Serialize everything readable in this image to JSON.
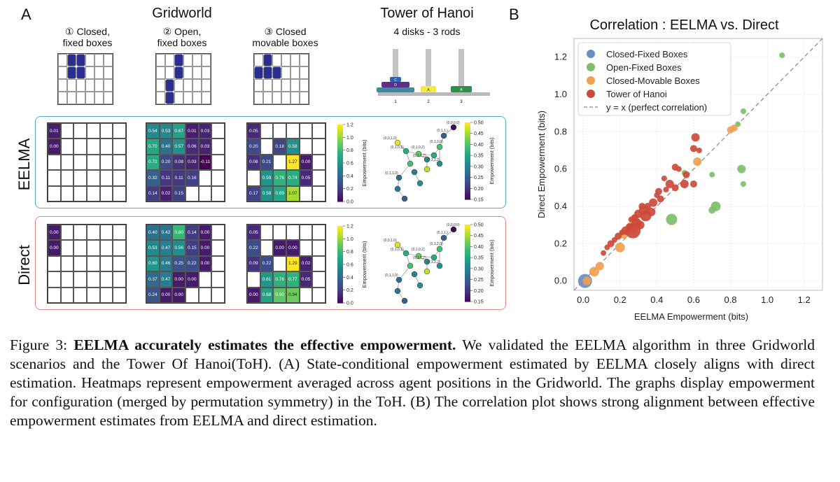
{
  "panel_a": {
    "letter": "A",
    "gridworld_title": "Gridworld",
    "scenarios": [
      {
        "num": "①",
        "line1": "Closed,",
        "line2": "fixed boxes"
      },
      {
        "num": "②",
        "line1": "Open,",
        "line2": "fixed boxes"
      },
      {
        "num": "③",
        "line1": "Closed",
        "line2": "movable boxes"
      }
    ],
    "hanoi_title": "Tower of Hanoi",
    "hanoi_sub": "4 disks - 3 rods",
    "rod_labels": [
      "1",
      "2",
      "3"
    ],
    "disk_labels": [
      "C",
      "D",
      "A",
      "B"
    ],
    "rows": [
      "EELMA",
      "Direct"
    ],
    "cbar_label": "Empowerment (bits)",
    "cbar_left_ticks": [
      "1.2",
      "1.0",
      "0.8",
      "0.6",
      "0.4",
      "0.2",
      "0.0"
    ],
    "cbar_right_ticks": [
      "0.50",
      "0.45",
      "0.40",
      "0.35",
      "0.30",
      "0.25",
      "0.20",
      "0.15"
    ],
    "eelma": {
      "g1": [
        [
          "0.01",
          "",
          "",
          "",
          "",
          ""
        ],
        [
          "0.00",
          "",
          "",
          "",
          "",
          ""
        ],
        [
          "",
          "",
          "",
          "",
          "",
          ""
        ],
        [
          "",
          "",
          "",
          "",
          "",
          ""
        ],
        [
          "",
          "",
          "",
          "",
          "",
          ""
        ]
      ],
      "g2": [
        [
          "0.54",
          "0.53",
          "0.67",
          "0.01",
          "0.03",
          ""
        ],
        [
          "0.70",
          "0.40",
          "0.57",
          "0.06",
          "0.03",
          ""
        ],
        [
          "0.72",
          "0.20",
          "0.08",
          "0.03",
          "-0.11",
          ""
        ],
        [
          "0.32",
          "0.11",
          "0.11",
          "0.16",
          "",
          ""
        ],
        [
          "0.14",
          "0.02",
          "0.15",
          "",
          "",
          ""
        ]
      ],
      "g3": [
        [
          "0.05",
          "",
          "",
          "",
          "",
          ""
        ],
        [
          "0.20",
          "",
          "0.18",
          "0.58",
          "",
          ""
        ],
        [
          "0.08",
          "0.21",
          "",
          "1.27",
          "0.00",
          ""
        ],
        [
          "",
          "0.59",
          "0.76",
          "0.74",
          "0.05",
          ""
        ],
        [
          "0.17",
          "0.58",
          "0.69",
          "1.07",
          "",
          ""
        ]
      ]
    },
    "direct": {
      "g1": [
        [
          "0.00",
          "",
          "",
          "",
          "",
          ""
        ],
        [
          "0.00",
          "",
          "",
          "",
          "",
          ""
        ],
        [
          "",
          "",
          "",
          "",
          "",
          ""
        ],
        [
          "",
          "",
          "",
          "",
          "",
          ""
        ],
        [
          "",
          "",
          "",
          "",
          "",
          ""
        ]
      ],
      "g2": [
        [
          "0.40",
          "0.42",
          "0.80",
          "0.14",
          "0.00",
          ""
        ],
        [
          "0.53",
          "0.47",
          "0.56",
          "0.15",
          "0.00",
          ""
        ],
        [
          "0.60",
          "0.46",
          "0.25",
          "0.22",
          "0.00",
          ""
        ],
        [
          "0.37",
          "0.47",
          "0.00",
          "0.00",
          "",
          ""
        ],
        [
          "0.24",
          "0.00",
          "0.00",
          "",
          "",
          ""
        ]
      ],
      "g3": [
        [
          "0.05",
          "",
          "",
          "",
          "",
          ""
        ],
        [
          "0.22",
          "",
          "0.00",
          "0.00",
          "",
          ""
        ],
        [
          "0.09",
          "0.22",
          "",
          "1.29",
          "0.02",
          ""
        ],
        [
          "",
          "0.61",
          "0.76",
          "0.77",
          "0.05",
          ""
        ],
        [
          "0.00",
          "0.68",
          "0.90",
          "0.94",
          "",
          ""
        ]
      ]
    },
    "hanoi_nodes_eelma": [
      "(0,0,0,0)",
      "(0,1,1,)",
      "(0,0,1,0)",
      "(0,1,0,1)",
      "(0,1,0,2)",
      "(0,1,2,0)",
      "(0,1,1,2)",
      "(0,1,2,2)",
      "(0,1,1,0)"
    ],
    "hanoi_nodes_direct": [
      "(0,0,0,0)",
      "(0,1,1,)",
      "(0,0,1,0)",
      "(0,1,0,1)",
      "(0,1,0,2)",
      "(0,1,2,0)",
      "(0,1,1,2)",
      "(0,1,2,2)",
      "(0,1,1,0)"
    ]
  },
  "panel_b": {
    "letter": "B",
    "chart_data": {
      "type": "scatter",
      "title": "Correlation : EELMA vs. Direct",
      "xlabel": "EELMA Empowerment (bits)",
      "ylabel": "Direct Empowerment (bits)",
      "xlim": [
        -0.05,
        1.3
      ],
      "ylim": [
        -0.05,
        1.3
      ],
      "xticks": [
        "0.0",
        "0.2",
        "0.4",
        "0.6",
        "0.8",
        "1.0",
        "1.2"
      ],
      "yticks": [
        "0.0",
        "0.2",
        "0.4",
        "0.6",
        "0.8",
        "1.0",
        "1.2"
      ],
      "grid": true,
      "legend_position": "top-left",
      "reference_line": "y = x (perfect correlation)",
      "series": [
        {
          "name": "Closed-Fixed Boxes",
          "color": "#6a8fc2",
          "points": [
            [
              0.01,
              0.0,
              10
            ]
          ]
        },
        {
          "name": "Open-Fixed Boxes",
          "color": "#7cbf6a",
          "points": [
            [
              1.08,
              1.21,
              4
            ],
            [
              0.87,
              0.91,
              4
            ],
            [
              0.84,
              0.84,
              4
            ],
            [
              0.86,
              0.6,
              6
            ],
            [
              0.87,
              0.52,
              4
            ],
            [
              0.72,
              0.4,
              7
            ],
            [
              0.7,
              0.38,
              5
            ],
            [
              0.7,
              0.57,
              4
            ],
            [
              0.48,
              0.33,
              8
            ],
            [
              0.55,
              0.58,
              4
            ]
          ]
        },
        {
          "name": "Closed-Movable Boxes",
          "color": "#f0a050",
          "points": [
            [
              0.02,
              0.0,
              6
            ],
            [
              0.06,
              0.05,
              7
            ],
            [
              0.09,
              0.08,
              6
            ],
            [
              0.2,
              0.18,
              7
            ],
            [
              0.22,
              0.25,
              6
            ],
            [
              0.27,
              0.29,
              9
            ],
            [
              0.62,
              0.64,
              6
            ],
            [
              0.8,
              0.81,
              5
            ],
            [
              0.82,
              0.82,
              5
            ],
            [
              0.28,
              0.33,
              6
            ]
          ]
        },
        {
          "name": "Tower of Hanoi",
          "color": "#cc4a3a",
          "points": [
            [
              0.61,
              0.77,
              6
            ],
            [
              0.6,
              0.71,
              5
            ],
            [
              0.63,
              0.7,
              4
            ],
            [
              0.5,
              0.61,
              5
            ],
            [
              0.52,
              0.6,
              4
            ],
            [
              0.44,
              0.55,
              4
            ],
            [
              0.47,
              0.52,
              6
            ],
            [
              0.5,
              0.5,
              5
            ],
            [
              0.55,
              0.52,
              6
            ],
            [
              0.6,
              0.52,
              5
            ],
            [
              0.4,
              0.46,
              4
            ],
            [
              0.42,
              0.44,
              5
            ],
            [
              0.45,
              0.49,
              4
            ],
            [
              0.38,
              0.42,
              6
            ],
            [
              0.35,
              0.4,
              5
            ],
            [
              0.33,
              0.38,
              7
            ],
            [
              0.3,
              0.36,
              6
            ],
            [
              0.28,
              0.34,
              5
            ],
            [
              0.26,
              0.33,
              4
            ],
            [
              0.31,
              0.3,
              6
            ],
            [
              0.25,
              0.29,
              5
            ],
            [
              0.23,
              0.27,
              6
            ],
            [
              0.21,
              0.26,
              4
            ],
            [
              0.19,
              0.24,
              5
            ],
            [
              0.17,
              0.22,
              4
            ],
            [
              0.15,
              0.2,
              5
            ],
            [
              0.13,
              0.18,
              4
            ],
            [
              0.11,
              0.15,
              4
            ],
            [
              0.29,
              0.31,
              7
            ],
            [
              0.27,
              0.27,
              11
            ],
            [
              0.34,
              0.35,
              8
            ],
            [
              0.37,
              0.37,
              6
            ],
            [
              0.32,
              0.4,
              5
            ],
            [
              0.41,
              0.48,
              5
            ],
            [
              0.56,
              0.57,
              5
            ]
          ]
        }
      ]
    }
  },
  "caption": {
    "label": "Figure 3: ",
    "bold": "EELMA accurately estimates the effective empowerment.",
    "text": " We validated the EELMA algorithm in three Gridworld scenarios and the Tower Of Hanoi(ToH). (A) State-conditional empowerment estimated by EELMA closely aligns with direct estimation. Heatmaps represent empowerment averaged across agent positions in the Gridworld. The graphs display empowerment for configuration (merged by permutation symmetry) in the ToH. (B) The correlation plot shows strong alignment between effective empowerment estimates from EELMA and direct estimation."
  }
}
